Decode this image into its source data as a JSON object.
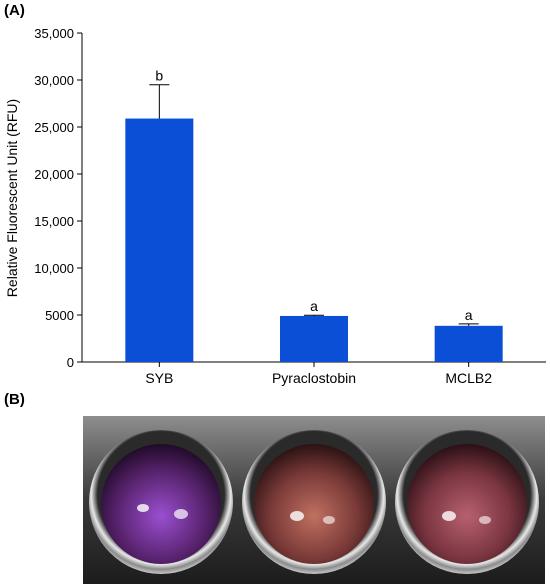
{
  "panels": {
    "a_label": "(A)",
    "b_label": "(B)"
  },
  "chart_data": {
    "type": "bar",
    "title": "",
    "xlabel": "",
    "ylabel": "Relative Fluorescent Unit (RFU)",
    "ylim": [
      0,
      35000
    ],
    "yticks": [
      0,
      5000,
      10000,
      15000,
      20000,
      25000,
      30000,
      35000
    ],
    "ytick_labels": [
      "0",
      "5000",
      "10,000",
      "15,000",
      "20,000",
      "25,000",
      "30,000",
      "35,000"
    ],
    "categories": [
      "SYB",
      "Pyraclostobin",
      "MCLB2"
    ],
    "values": [
      25900,
      4900,
      3850
    ],
    "errors": [
      3600,
      80,
      200
    ],
    "significance": [
      "b",
      "a",
      "a"
    ],
    "bar_color": "#0a4fd6",
    "grid": false,
    "legend": "none"
  },
  "photo": {
    "wells": 3,
    "well_colors": [
      "#5a2470",
      "#7a3a38",
      "#7a3540"
    ]
  }
}
